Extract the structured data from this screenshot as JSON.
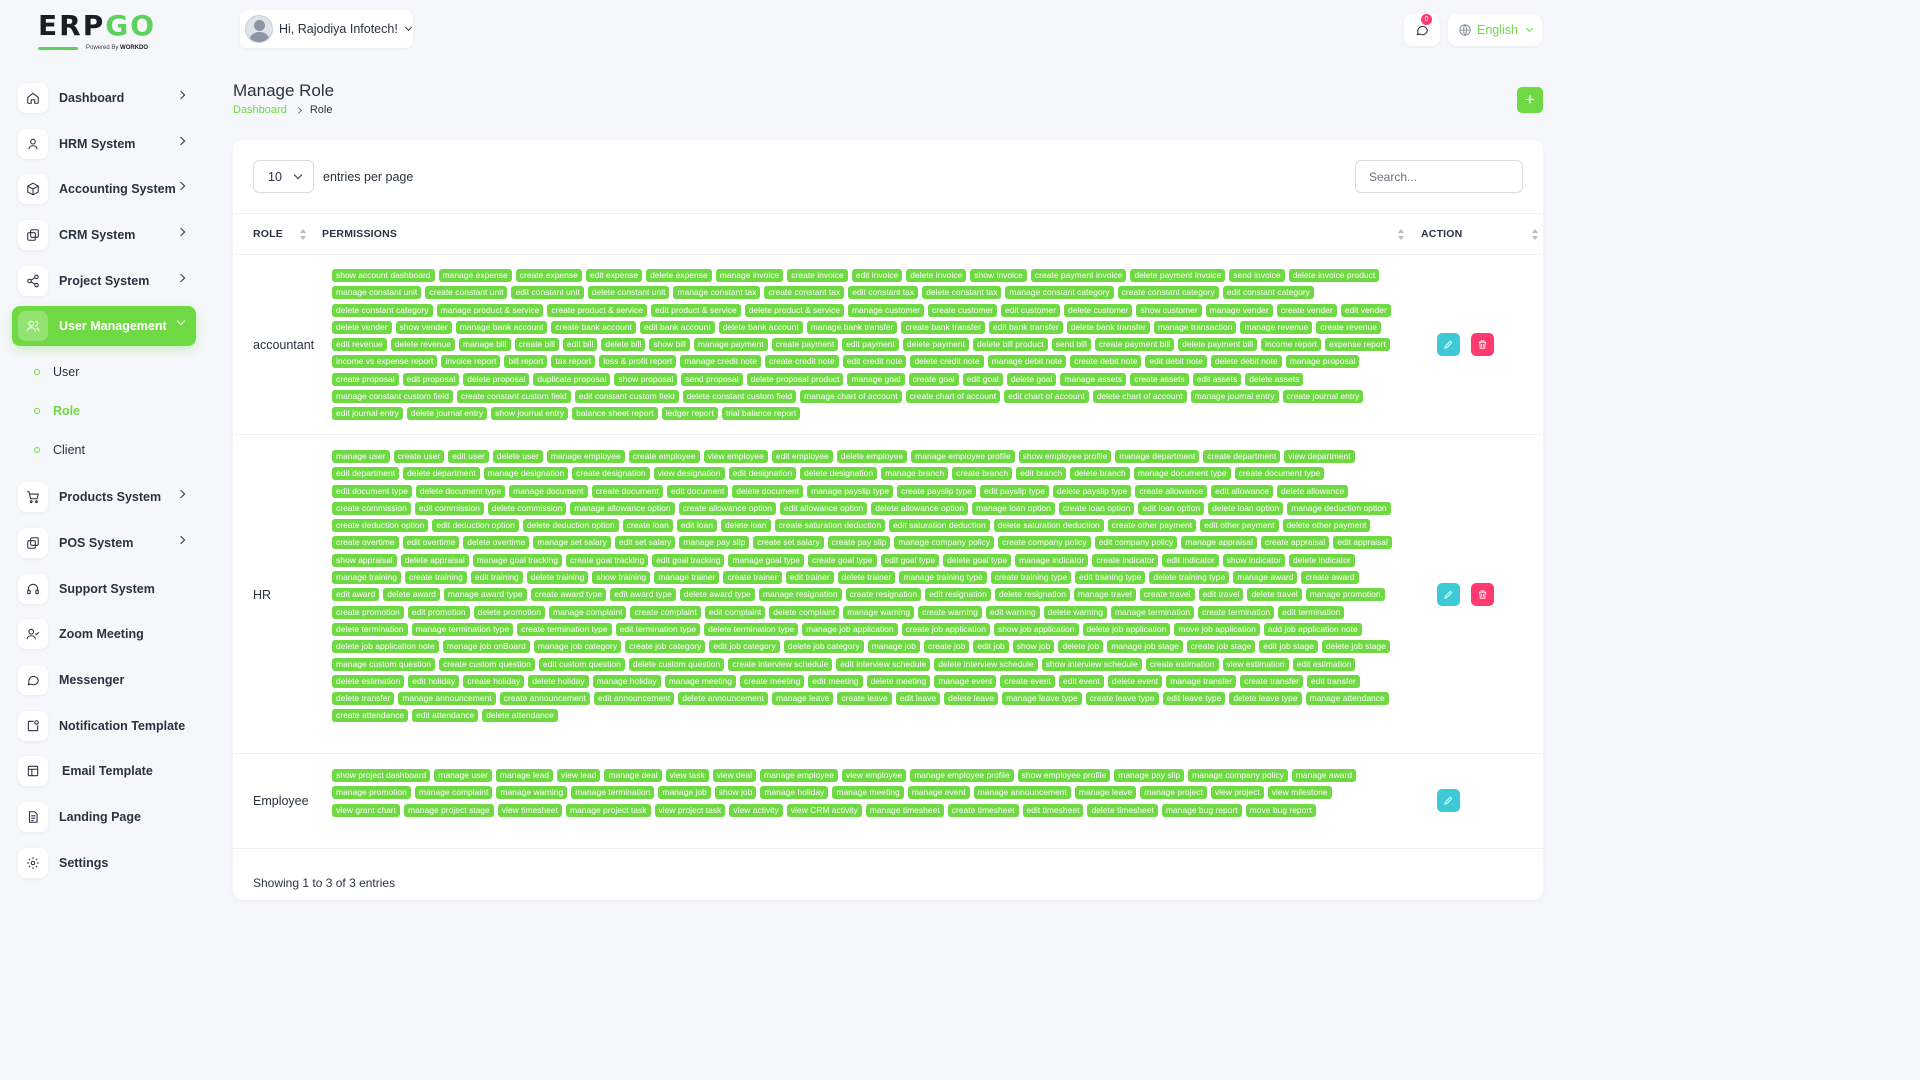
{
  "brand": {
    "name_a": "ERP",
    "name_b": "GO",
    "powered_prefix": "Powered By",
    "powered_brand": "WORKDO"
  },
  "sidebar": {
    "items": [
      {
        "label": "Dashboard"
      },
      {
        "label": "HRM System"
      },
      {
        "label": "Accounting System"
      },
      {
        "label": "CRM System"
      },
      {
        "label": "Project System"
      },
      {
        "label": "User Management"
      },
      {
        "label": "Products System"
      },
      {
        "label": "POS System"
      },
      {
        "label": "Support System"
      },
      {
        "label": "Zoom Meeting"
      },
      {
        "label": "Messenger"
      },
      {
        "label": "Notification Template"
      },
      {
        "label": "Email Template"
      },
      {
        "label": "Landing Page"
      },
      {
        "label": "Settings"
      }
    ],
    "user_management_sub": [
      {
        "label": "User"
      },
      {
        "label": "Role"
      },
      {
        "label": "Client"
      }
    ]
  },
  "header": {
    "greeting": "Hi, Rajodiya Infotech!",
    "notification_count": "0",
    "language": "English"
  },
  "page": {
    "title": "Manage Role",
    "breadcrumb_home": "Dashboard",
    "breadcrumb_current": "Role",
    "add_label": "+"
  },
  "table": {
    "per_page_value": "10",
    "per_page_label": "entries per page",
    "search_placeholder": "Search...",
    "headers": {
      "role": "ROLE",
      "permissions": "PERMISSIONS",
      "action": "ACTION"
    },
    "footer": "Showing 1 to 3 of 3 entries",
    "rows": [
      {
        "role": "accountant",
        "permissions": [
          "show account dashboard",
          "manage expense",
          "create expense",
          "edit expense",
          "delete expense",
          "manage invoice",
          "create invoice",
          "edit invoice",
          "delete invoice",
          "show invoice",
          "create payment invoice",
          "delete payment invoice",
          "send invoice",
          "delete invoice product",
          "manage constant unit",
          "create constant unit",
          "edit constant unit",
          "delete constant unit",
          "manage constant tax",
          "create constant tax",
          "edit constant tax",
          "delete constant tax",
          "manage constant category",
          "create constant category",
          "edit constant category",
          "delete constant category",
          "manage product & service",
          "create product & service",
          "edit product & service",
          "delete product & service",
          "manage customer",
          "create customer",
          "edit customer",
          "delete customer",
          "show customer",
          "manage vender",
          "create vender",
          "edit vender",
          "delete vender",
          "show vender",
          "manage bank account",
          "create bank account",
          "edit bank account",
          "delete bank account",
          "manage bank transfer",
          "create bank transfer",
          "edit bank transfer",
          "delete bank transfer",
          "manage transaction",
          "manage revenue",
          "create revenue",
          "edit revenue",
          "delete revenue",
          "manage bill",
          "create bill",
          "edit bill",
          "delete bill",
          "show bill",
          "manage payment",
          "create payment",
          "edit payment",
          "delete payment",
          "delete bill product",
          "send bill",
          "create payment bill",
          "delete payment bill",
          "income report",
          "expense report",
          "income vs expense report",
          "invoice report",
          "bill report",
          "tax report",
          "loss & profit report",
          "manage credit note",
          "create credit note",
          "edit credit note",
          "delete credit note",
          "manage debit note",
          "create debit note",
          "edit debit note",
          "delete debit note",
          "manage proposal",
          "create proposal",
          "edit proposal",
          "delete proposal",
          "duplicate proposal",
          "show proposal",
          "send proposal",
          "delete proposal product",
          "manage goal",
          "create goal",
          "edit goal",
          "delete goal",
          "manage assets",
          "create assets",
          "edit assets",
          "delete assets",
          "manage constant custom field",
          "create constant custom field",
          "edit constant custom field",
          "delete constant custom field",
          "manage chart of account",
          "create chart of account",
          "edit chart of account",
          "delete chart of account",
          "manage journal entry",
          "create journal entry",
          "edit journal entry",
          "delete journal entry",
          "show journal entry",
          "balance sheet report",
          "ledger report",
          "trial balance report"
        ]
      },
      {
        "role": "HR",
        "permissions": [
          "manage user",
          "create user",
          "edit user",
          "delete user",
          "manage employee",
          "create employee",
          "view employee",
          "edit employee",
          "delete employee",
          "manage employee profile",
          "show employee profile",
          "manage department",
          "create department",
          "view department",
          "edit department",
          "delete department",
          "manage designation",
          "create designation",
          "view designation",
          "edit designation",
          "delete designation",
          "manage branch",
          "create branch",
          "edit branch",
          "delete branch",
          "manage document type",
          "create document type",
          "edit document type",
          "delete document type",
          "manage document",
          "create document",
          "edit document",
          "delete document",
          "manage payslip type",
          "create payslip type",
          "edit payslip type",
          "delete payslip type",
          "create allowance",
          "edit allowance",
          "delete allowance",
          "create commission",
          "edit commission",
          "delete commission",
          "manage allowance option",
          "create allowance option",
          "edit allowance option",
          "delete allowance option",
          "manage loan option",
          "create loan option",
          "edit loan option",
          "delete loan option",
          "manage deduction option",
          "create deduction option",
          "edit deduction option",
          "delete deduction option",
          "create loan",
          "edit loan",
          "delete loan",
          "create saturation deduction",
          "edit saturation deduction",
          "delete saturation deduction",
          "create other payment",
          "edit other payment",
          "delete other payment",
          "create overtime",
          "edit overtime",
          "delete overtime",
          "manage set salary",
          "edit set salary",
          "manage pay slip",
          "create set salary",
          "create pay slip",
          "manage company policy",
          "create company policy",
          "edit company policy",
          "manage appraisal",
          "create appraisal",
          "edit appraisal",
          "show appraisal",
          "delete appraisal",
          "manage goal tracking",
          "create goal tracking",
          "edit goal tracking",
          "manage goal type",
          "create goal type",
          "edit goal type",
          "delete goal type",
          "manage indicator",
          "create indicator",
          "edit indicator",
          "show indicator",
          "delete indicator",
          "manage training",
          "create training",
          "edit training",
          "delete training",
          "show training",
          "manage trainer",
          "create trainer",
          "edit trainer",
          "delete trainer",
          "manage training type",
          "create training type",
          "edit training type",
          "delete training type",
          "manage award",
          "create award",
          "edit award",
          "delete award",
          "manage award type",
          "create award type",
          "edit award type",
          "delete award type",
          "manage resignation",
          "create resignation",
          "edit resignation",
          "delete resignation",
          "manage travel",
          "create travel",
          "edit travel",
          "delete travel",
          "manage promotion",
          "create promotion",
          "edit promotion",
          "delete promotion",
          "manage complaint",
          "create complaint",
          "edit complaint",
          "delete complaint",
          "manage warning",
          "create warning",
          "edit warning",
          "delete warning",
          "manage termination",
          "create termination",
          "edit termination",
          "delete termination",
          "manage termination type",
          "create termination type",
          "edit termination type",
          "delete termination type",
          "manage job application",
          "create job application",
          "show job application",
          "delete job application",
          "move job application",
          "add job application note",
          "delete job application note",
          "manage job onBoard",
          "manage job category",
          "create job category",
          "edit job category",
          "delete job category",
          "manage job",
          "create job",
          "edit job",
          "show job",
          "delete job",
          "manage job stage",
          "create job stage",
          "edit job stage",
          "delete job stage",
          "manage custom question",
          "create custom question",
          "edit custom question",
          "delete custom question",
          "create interview schedule",
          "edit interview schedule",
          "delete interview schedule",
          "show interview schedule",
          "create estimation",
          "view estimation",
          "edit estimation",
          "delete estimation",
          "edit holiday",
          "create holiday",
          "delete holiday",
          "manage holiday",
          "manage meeting",
          "create meeting",
          "edit meeting",
          "delete meeting",
          "manage event",
          "create event",
          "edit event",
          "delete event",
          "manage transfer",
          "create transfer",
          "edit transfer",
          "delete transfer",
          "manage announcement",
          "create announcement",
          "edit announcement",
          "delete announcement",
          "manage leave",
          "create leave",
          "edit leave",
          "delete leave",
          "manage leave type",
          "create leave type",
          "edit leave type",
          "delete leave type",
          "manage attendance",
          "create attendance",
          "edit attendance",
          "delete attendance"
        ]
      },
      {
        "role": "Employee",
        "permissions": [
          "show project dashboard",
          "manage user",
          "manage lead",
          "view lead",
          "manage deal",
          "view task",
          "view deal",
          "manage employee",
          "view employee",
          "manage employee profile",
          "show employee profile",
          "manage pay slip",
          "manage company policy",
          "manage award",
          "manage promotion",
          "manage complaint",
          "manage warning",
          "manage termination",
          "manage job",
          "show job",
          "manage holiday",
          "manage meeting",
          "manage event",
          "manage announcement",
          "manage leave",
          "manage project",
          "view project",
          "view milestone",
          "view grant chart",
          "manage project stage",
          "view timesheet",
          "manage project task",
          "view project task",
          "view activity",
          "view CRM activity",
          "manage timesheet",
          "create timesheet",
          "edit timesheet",
          "delete timesheet",
          "manage bug report",
          "move bug report"
        ]
      }
    ]
  }
}
